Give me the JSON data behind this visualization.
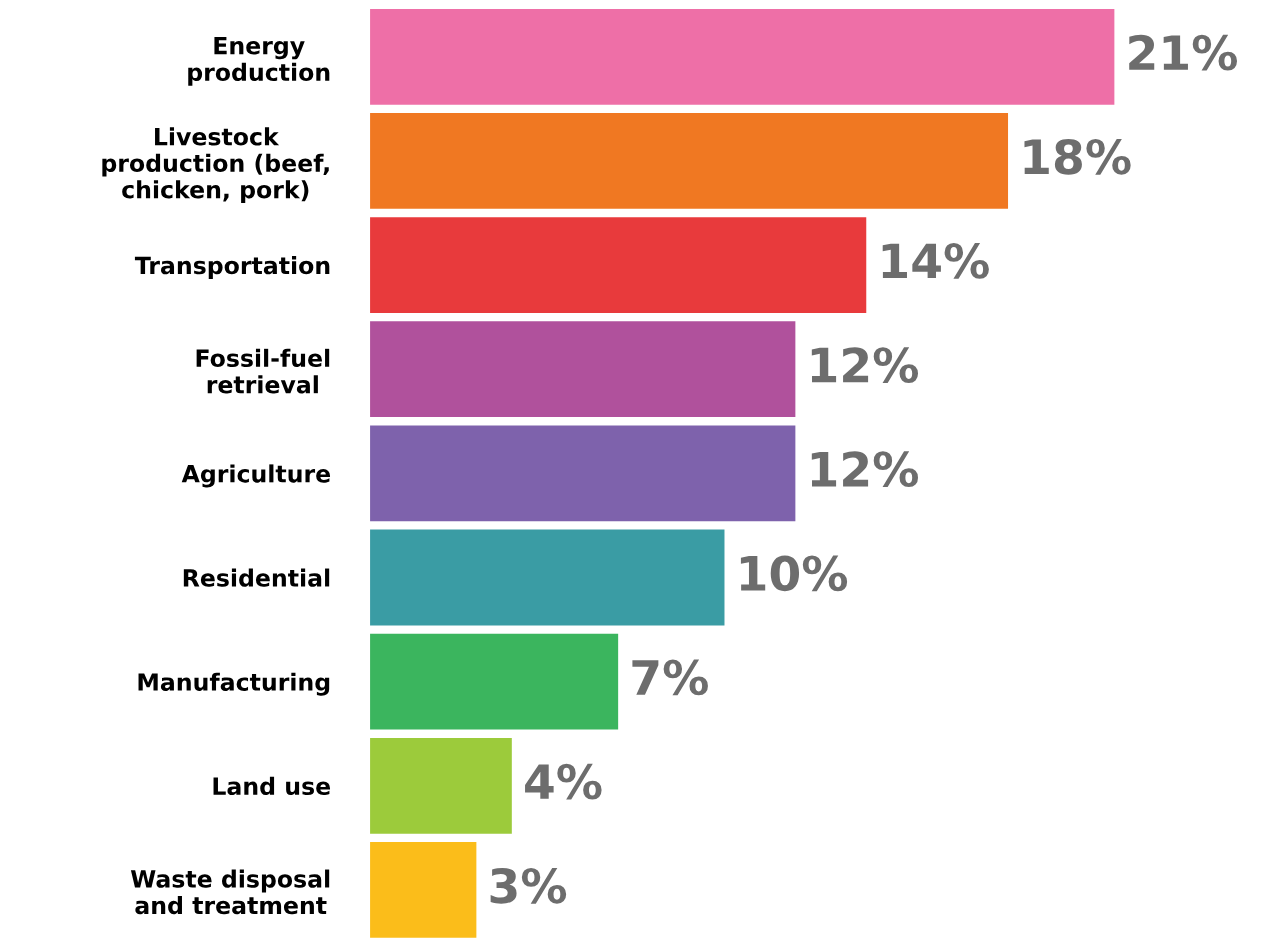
{
  "chart_data": {
    "type": "bar",
    "orientation": "horizontal",
    "categories": [
      "Energy\nproduction",
      "Livestock\nproduction (beef,\nchicken, pork)",
      "Transportation",
      "Fossil-fuel\nretrieval",
      "Agriculture",
      "Residential",
      "Manufacturing",
      "Land use",
      "Waste disposal\nand treatment"
    ],
    "values": [
      21,
      18,
      14,
      12,
      12,
      10,
      7,
      4,
      3
    ],
    "value_labels": [
      "21%",
      "18%",
      "14%",
      "12%",
      "12%",
      "10%",
      "7%",
      "4%",
      "3%"
    ],
    "colors": [
      "#ee6fa7",
      "#f07822",
      "#e83a3c",
      "#b0519c",
      "#7e62ac",
      "#3a9ca4",
      "#3bb55e",
      "#9ccb3b",
      "#fbbd1a"
    ],
    "tick_labels": "y",
    "grid": false,
    "legend": false
  }
}
